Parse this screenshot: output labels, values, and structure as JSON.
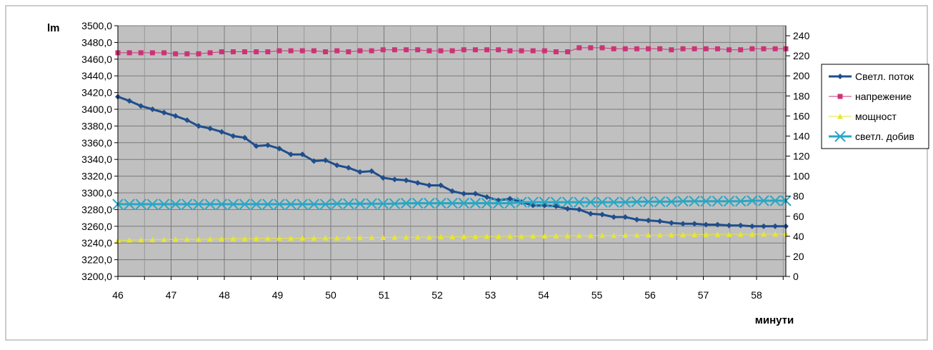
{
  "chart_data": {
    "type": "line",
    "y_unit_label": "lm",
    "xlabel": "минути",
    "x_ticks": [
      "46",
      "47",
      "48",
      "49",
      "50",
      "51",
      "52",
      "53",
      "54",
      "55",
      "56",
      "57",
      "58"
    ],
    "xlim": [
      46,
      58.55
    ],
    "ylim_left": [
      3200,
      3500
    ],
    "ylim_right": [
      0,
      250
    ],
    "y_ticks_left": [
      "3200,0",
      "3220,0",
      "3240,0",
      "3260,0",
      "3280,0",
      "3300,0",
      "3320,0",
      "3340,0",
      "3360,0",
      "3380,0",
      "3400,0",
      "3420,0",
      "3440,0",
      "3460,0",
      "3480,0",
      "3500,0"
    ],
    "y_ticks_right": [
      "0",
      "20",
      "40",
      "60",
      "80",
      "100",
      "120",
      "140",
      "160",
      "180",
      "200",
      "220",
      "240"
    ],
    "grid": true,
    "legend_position": "right",
    "series": [
      {
        "name": "Светл. поток",
        "axis": "left",
        "color": "#1f4e8c",
        "marker": "diamond",
        "x": [
          46,
          46.217,
          46.433,
          46.65,
          46.867,
          47.083,
          47.3,
          47.517,
          47.733,
          47.95,
          48.167,
          48.383,
          48.6,
          48.817,
          49.033,
          49.25,
          49.467,
          49.683,
          49.9,
          50.117,
          50.333,
          50.55,
          50.767,
          50.983,
          51.2,
          51.417,
          51.633,
          51.85,
          52.067,
          52.283,
          52.5,
          52.717,
          52.933,
          53.15,
          53.367,
          53.583,
          53.8,
          54.017,
          54.233,
          54.45,
          54.667,
          54.883,
          55.1,
          55.317,
          55.533,
          55.75,
          55.967,
          56.183,
          56.4,
          56.617,
          56.833,
          57.05,
          57.267,
          57.483,
          57.7,
          57.917,
          58.133,
          58.35,
          58.55
        ],
        "values": [
          3415,
          3410,
          3404,
          3400,
          3396,
          3392,
          3387,
          3380,
          3377,
          3373,
          3368,
          3366,
          3356,
          3357,
          3353,
          3346,
          3346,
          3338,
          3339,
          3333,
          3330,
          3325,
          3326,
          3318,
          3316,
          3315,
          3312,
          3309,
          3309,
          3302,
          3299,
          3299,
          3295,
          3291,
          3293,
          3289,
          3285,
          3285,
          3284,
          3281,
          3280,
          3275,
          3274,
          3271,
          3271,
          3268,
          3267,
          3266,
          3264,
          3263,
          3263,
          3262,
          3262,
          3261,
          3261,
          3260,
          3260,
          3260,
          3260
        ]
      },
      {
        "name": "напрежение",
        "axis": "right",
        "color": "#cc3377",
        "marker": "square",
        "x": [
          46,
          46.217,
          46.433,
          46.65,
          46.867,
          47.083,
          47.3,
          47.517,
          47.733,
          47.95,
          48.167,
          48.383,
          48.6,
          48.817,
          49.033,
          49.25,
          49.467,
          49.683,
          49.9,
          50.117,
          50.333,
          50.55,
          50.767,
          50.983,
          51.2,
          51.417,
          51.633,
          51.85,
          52.067,
          52.283,
          52.5,
          52.717,
          52.933,
          53.15,
          53.367,
          53.583,
          53.8,
          54.017,
          54.233,
          54.45,
          54.667,
          54.883,
          55.1,
          55.317,
          55.533,
          55.75,
          55.967,
          56.183,
          56.4,
          56.617,
          56.833,
          57.05,
          57.267,
          57.483,
          57.7,
          57.917,
          58.133,
          58.35,
          58.55
        ],
        "values": [
          223,
          223,
          223,
          223,
          223,
          222,
          222,
          222,
          223,
          224,
          224,
          224,
          224,
          224,
          225,
          225,
          225,
          225,
          224,
          225,
          224,
          225,
          225,
          226,
          226,
          226,
          226,
          225,
          225,
          225,
          226,
          226,
          226,
          226,
          225,
          225,
          225,
          225,
          224,
          224,
          228,
          228,
          228,
          227,
          227,
          227,
          227,
          227,
          226,
          227,
          227,
          227,
          227,
          226,
          226,
          227,
          227,
          227,
          227
        ]
      },
      {
        "name": "мощност",
        "axis": "right",
        "color": "#e6e633",
        "marker": "triangle",
        "x": [
          46,
          46.217,
          46.433,
          46.65,
          46.867,
          47.083,
          47.3,
          47.517,
          47.733,
          47.95,
          48.167,
          48.383,
          48.6,
          48.817,
          49.033,
          49.25,
          49.467,
          49.683,
          49.9,
          50.117,
          50.333,
          50.55,
          50.767,
          50.983,
          51.2,
          51.417,
          51.633,
          51.85,
          52.067,
          52.283,
          52.5,
          52.717,
          52.933,
          53.15,
          53.367,
          53.583,
          53.8,
          54.017,
          54.233,
          54.45,
          54.667,
          54.883,
          55.1,
          55.317,
          55.533,
          55.75,
          55.967,
          56.183,
          56.4,
          56.617,
          56.833,
          57.05,
          57.267,
          57.483,
          57.7,
          57.917,
          58.133,
          58.35,
          58.55
        ],
        "values": [
          36,
          36.2,
          36.4,
          36.6,
          36.8,
          37,
          37,
          37,
          37.2,
          37.4,
          37.6,
          37.6,
          37.8,
          38,
          38,
          38,
          38.2,
          38.2,
          38.4,
          38.4,
          38.6,
          38.6,
          38.8,
          38.8,
          39,
          39,
          39.2,
          39.2,
          39.4,
          39.4,
          39.6,
          39.6,
          39.8,
          39.8,
          40,
          40,
          40.2,
          40.2,
          40.4,
          40.4,
          40.6,
          40.6,
          40.8,
          40.8,
          41,
          41,
          41.2,
          41.2,
          41.4,
          41.4,
          41.6,
          41.6,
          41.8,
          41.8,
          42,
          42,
          42.2,
          42.2,
          42.4
        ]
      },
      {
        "name": "светл. добив",
        "axis": "right",
        "color": "#2aa6c4",
        "marker": "x",
        "x": [
          46,
          46.217,
          46.433,
          46.65,
          46.867,
          47.083,
          47.3,
          47.517,
          47.733,
          47.95,
          48.167,
          48.383,
          48.6,
          48.817,
          49.033,
          49.25,
          49.467,
          49.683,
          49.9,
          50.117,
          50.333,
          50.55,
          50.767,
          50.983,
          51.2,
          51.417,
          51.633,
          51.85,
          52.067,
          52.283,
          52.5,
          52.717,
          52.933,
          53.15,
          53.367,
          53.583,
          53.8,
          54.017,
          54.233,
          54.45,
          54.667,
          54.883,
          55.1,
          55.317,
          55.533,
          55.75,
          55.967,
          56.183,
          56.4,
          56.617,
          56.833,
          57.05,
          57.267,
          57.483,
          57.7,
          57.917,
          58.133,
          58.35,
          58.55
        ],
        "values": [
          72,
          72,
          72,
          72,
          72,
          72,
          72,
          72,
          72,
          72,
          72,
          72,
          72,
          72,
          72,
          72,
          72,
          72,
          72,
          72.5,
          72.5,
          72.5,
          72.5,
          72.5,
          72.5,
          73,
          73,
          73,
          73,
          73,
          73,
          73,
          73,
          73,
          73,
          74,
          74,
          74,
          74,
          74,
          74,
          74,
          74,
          74,
          74,
          74.5,
          74.5,
          74.5,
          74.5,
          75,
          75,
          75,
          75,
          75,
          75,
          75.5,
          75.5,
          75.5,
          75.5
        ]
      }
    ]
  }
}
